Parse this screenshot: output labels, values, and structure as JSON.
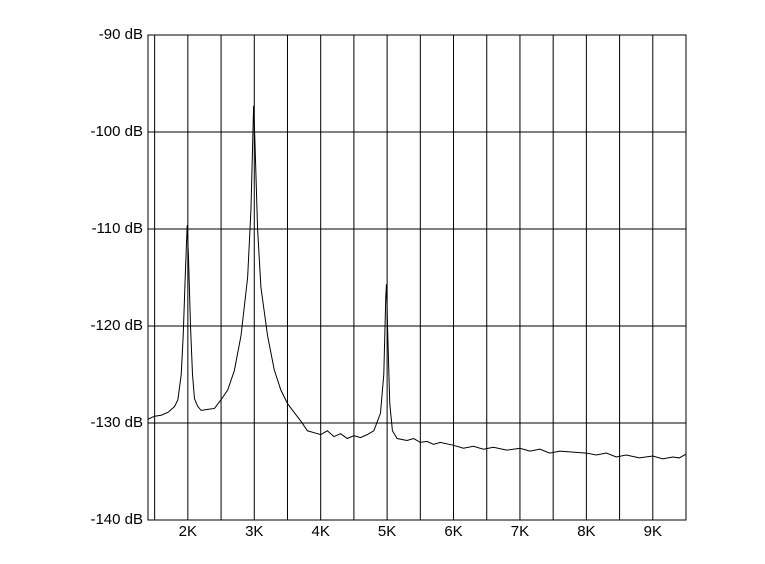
{
  "chart_data": {
    "type": "line",
    "x": [
      1400,
      1500,
      1600,
      1700,
      1800,
      1850,
      1900,
      1930,
      1960,
      1990,
      2010,
      2040,
      2070,
      2100,
      2150,
      2200,
      2300,
      2400,
      2500,
      2600,
      2700,
      2800,
      2900,
      2950,
      2990,
      3010,
      3050,
      3100,
      3200,
      3300,
      3400,
      3500,
      3600,
      3700,
      3800,
      3900,
      4000,
      4100,
      4200,
      4300,
      4400,
      4500,
      4600,
      4700,
      4800,
      4900,
      4950,
      4980,
      4990,
      5010,
      5040,
      5080,
      5150,
      5300,
      5400,
      5500,
      5600,
      5700,
      5800,
      6000,
      6150,
      6300,
      6450,
      6600,
      6800,
      7000,
      7150,
      7300,
      7450,
      7600,
      7800,
      8000,
      8150,
      8300,
      8450,
      8600,
      8800,
      9000,
      9150,
      9300,
      9400,
      9500
    ],
    "series": [
      {
        "color": "#000000",
        "values": [
          -129.6,
          -129.3,
          -129.2,
          -128.9,
          -128.3,
          -127.6,
          -125,
          -121,
          -115,
          -109.6,
          -113,
          -120,
          -125,
          -127.5,
          -128.3,
          -128.7,
          -128.6,
          -128.5,
          -127.6,
          -126.6,
          -124.6,
          -121,
          -115,
          -108,
          -97.3,
          -101,
          -110,
          -116,
          -121,
          -124.5,
          -126.6,
          -128,
          -128.9,
          -129.8,
          -130.8,
          -131,
          -131.2,
          -130.8,
          -131.4,
          -131.1,
          -131.6,
          -131.3,
          -131.5,
          -131.2,
          -130.8,
          -129,
          -125,
          -117,
          -115.7,
          -121,
          -128,
          -130.8,
          -131.6,
          -131.8,
          -131.6,
          -132,
          -131.9,
          -132.2,
          -132,
          -132.3,
          -132.6,
          -132.4,
          -132.7,
          -132.5,
          -132.8,
          -132.6,
          -132.9,
          -132.7,
          -133.1,
          -132.9,
          -133,
          -133.1,
          -133.3,
          -133.1,
          -133.5,
          -133.3,
          -133.6,
          -133.4,
          -133.7,
          -133.5,
          -133.6,
          -133.2
        ]
      }
    ],
    "xlim": [
      1400,
      9500
    ],
    "ylim": [
      -140,
      -90
    ],
    "xticks": [
      {
        "value": 2000,
        "label": "2K"
      },
      {
        "value": 3000,
        "label": "3K"
      },
      {
        "value": 4000,
        "label": "4K"
      },
      {
        "value": 5000,
        "label": "5K"
      },
      {
        "value": 6000,
        "label": "6K"
      },
      {
        "value": 7000,
        "label": "7K"
      },
      {
        "value": 8000,
        "label": "8K"
      },
      {
        "value": 9000,
        "label": "9K"
      }
    ],
    "xgrid_minor": [
      1500,
      2500,
      3500,
      4500,
      5500,
      6500,
      7500,
      8500,
      9500
    ],
    "yticks": [
      {
        "value": -90,
        "label": "-90 dB"
      },
      {
        "value": -100,
        "label": "-100 dB"
      },
      {
        "value": -110,
        "label": "-110 dB"
      },
      {
        "value": -120,
        "label": "-120 dB"
      },
      {
        "value": -130,
        "label": "-130 dB"
      },
      {
        "value": -140,
        "label": "-140 dB"
      }
    ],
    "grid": true
  }
}
